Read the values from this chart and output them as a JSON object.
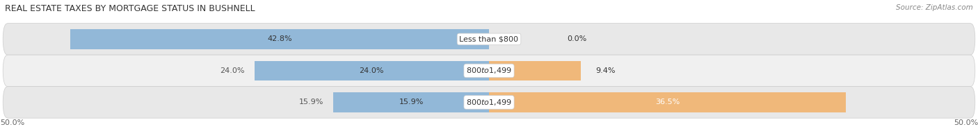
{
  "title": "REAL ESTATE TAXES BY MORTGAGE STATUS IN BUSHNELL",
  "source": "Source: ZipAtlas.com",
  "rows": [
    {
      "label": "Less than $800",
      "without_mortgage": 42.8,
      "with_mortgage": 0.0
    },
    {
      "label": "$800 to $1,499",
      "without_mortgage": 24.0,
      "with_mortgage": 9.4
    },
    {
      "label": "$800 to $1,499",
      "without_mortgage": 15.9,
      "with_mortgage": 36.5
    }
  ],
  "xlim": [
    -50.0,
    50.0
  ],
  "x_left_label": "50.0%",
  "x_right_label": "50.0%",
  "color_without": "#92b8d8",
  "color_with": "#f0b87a",
  "bar_height": 0.62,
  "row_bg_colors": [
    "#e8e8e8",
    "#f0f0f0",
    "#e8e8e8"
  ],
  "row_border_color": "#cccccc",
  "title_fontsize": 9,
  "source_fontsize": 7.5,
  "bar_label_fontsize": 8,
  "axis_label_fontsize": 8,
  "legend_fontsize": 8.5
}
